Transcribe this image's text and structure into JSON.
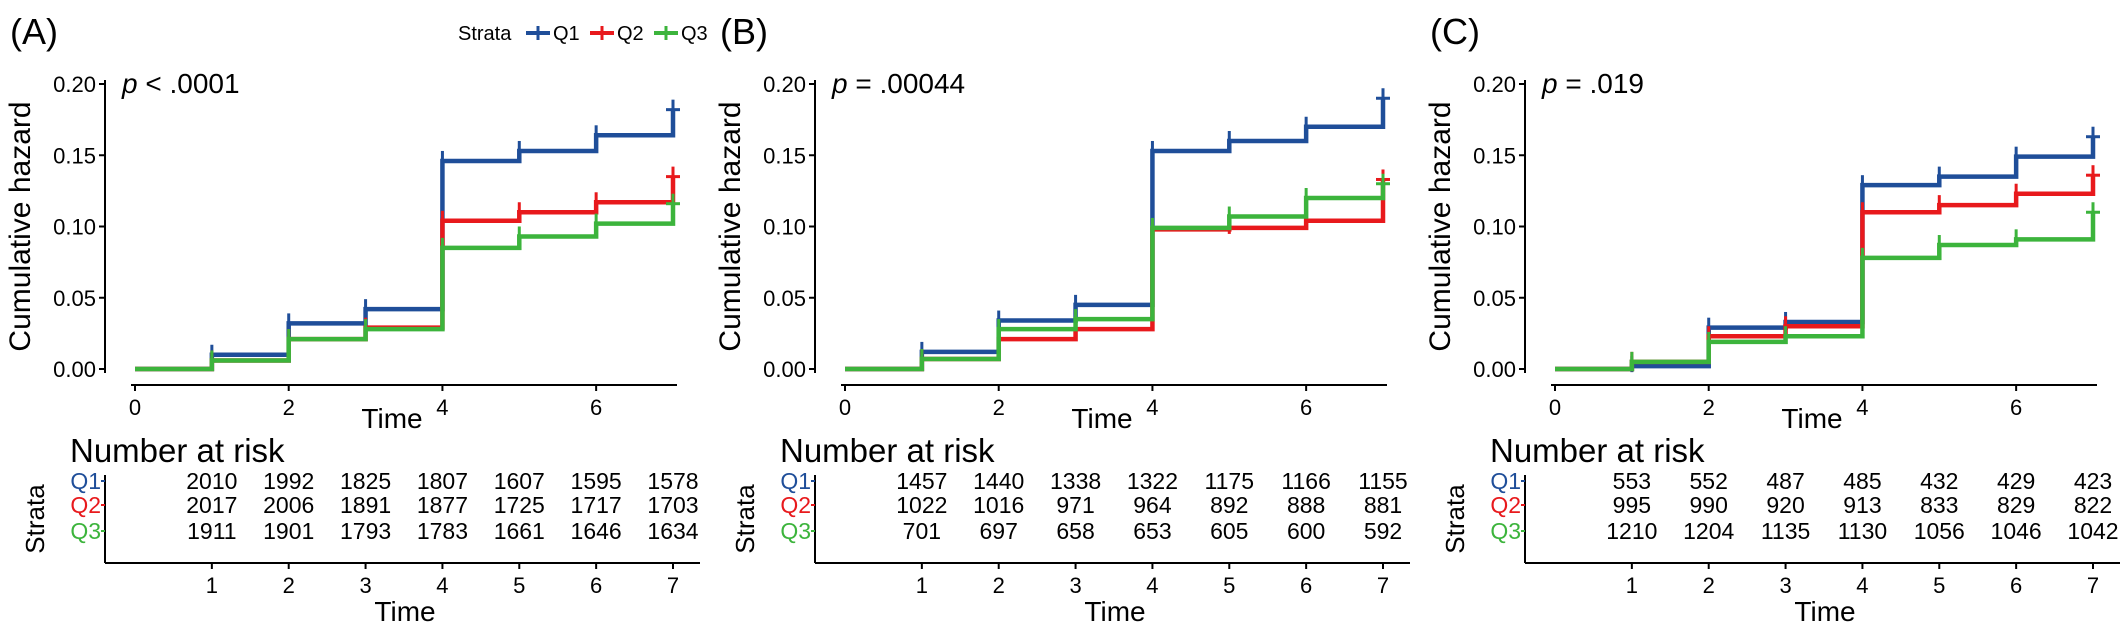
{
  "legend": {
    "title": "Strata",
    "items": [
      {
        "label": "Q1",
        "color": "#1f4e99"
      },
      {
        "label": "Q2",
        "color": "#e8191c"
      },
      {
        "label": "Q3",
        "color": "#3cb43c"
      }
    ]
  },
  "chart_data": [
    {
      "type": "line",
      "panel_label": "(A)",
      "pvalue": {
        "prefix": "p",
        "text": " < .0001"
      },
      "xlabel": "Time",
      "ylabel": "Cumulative hazard",
      "xlim": [
        0,
        7
      ],
      "ylim": [
        0,
        0.2
      ],
      "xticks": [
        0,
        2,
        4,
        6
      ],
      "yticks": [
        "0.00",
        "0.05",
        "0.10",
        "0.15",
        "0.20"
      ],
      "step": true,
      "series": [
        {
          "name": "Q1",
          "x": [
            0,
            1,
            2,
            3,
            4,
            5,
            6,
            7
          ],
          "y": [
            0,
            0.01,
            0.032,
            0.042,
            0.146,
            0.153,
            0.164,
            0.182
          ]
        },
        {
          "name": "Q2",
          "x": [
            0,
            1,
            2,
            3,
            4,
            5,
            6,
            7
          ],
          "y": [
            0,
            0.006,
            0.021,
            0.029,
            0.104,
            0.11,
            0.117,
            0.135
          ]
        },
        {
          "name": "Q3",
          "x": [
            0,
            1,
            2,
            3,
            4,
            5,
            6,
            7
          ],
          "y": [
            0,
            0.006,
            0.021,
            0.028,
            0.085,
            0.093,
            0.102,
            0.116
          ]
        }
      ],
      "risk_table": {
        "title": "Number at risk",
        "ylabel": "Strata",
        "xlabel": "Time",
        "times": [
          "1",
          "2",
          "3",
          "4",
          "5",
          "6",
          "7"
        ],
        "rows": [
          {
            "label": "Q1",
            "values": [
              "2010",
              "1992",
              "1825",
              "1807",
              "1607",
              "1595",
              "1578"
            ]
          },
          {
            "label": "Q2",
            "values": [
              "2017",
              "2006",
              "1891",
              "1877",
              "1725",
              "1717",
              "1703"
            ]
          },
          {
            "label": "Q3",
            "values": [
              "1911",
              "1901",
              "1793",
              "1783",
              "1661",
              "1646",
              "1634"
            ]
          }
        ]
      }
    },
    {
      "type": "line",
      "panel_label": "(B)",
      "pvalue": {
        "prefix": "p",
        "text": " = .00044"
      },
      "xlabel": "Time",
      "ylabel": "Cumulative hazard",
      "xlim": [
        0,
        7
      ],
      "ylim": [
        0,
        0.2
      ],
      "xticks": [
        0,
        2,
        4,
        6
      ],
      "yticks": [
        "0.00",
        "0.05",
        "0.10",
        "0.15",
        "0.20"
      ],
      "step": true,
      "series": [
        {
          "name": "Q1",
          "x": [
            0,
            1,
            2,
            3,
            4,
            5,
            6,
            7
          ],
          "y": [
            0,
            0.012,
            0.034,
            0.045,
            0.153,
            0.16,
            0.17,
            0.19
          ]
        },
        {
          "name": "Q2",
          "x": [
            0,
            1,
            2,
            3,
            4,
            5,
            6,
            7
          ],
          "y": [
            0,
            0.007,
            0.021,
            0.028,
            0.098,
            0.099,
            0.104,
            0.133
          ]
        },
        {
          "name": "Q3",
          "x": [
            0,
            1,
            2,
            3,
            4,
            5,
            6,
            7
          ],
          "y": [
            0,
            0.007,
            0.028,
            0.035,
            0.099,
            0.107,
            0.12,
            0.13
          ]
        }
      ],
      "risk_table": {
        "title": "Number at risk",
        "ylabel": "Strata",
        "xlabel": "Time",
        "times": [
          "1",
          "2",
          "3",
          "4",
          "5",
          "6",
          "7"
        ],
        "rows": [
          {
            "label": "Q1",
            "values": [
              "1457",
              "1440",
              "1338",
              "1322",
              "1175",
              "1166",
              "1155"
            ]
          },
          {
            "label": "Q2",
            "values": [
              "1022",
              "1016",
              "971",
              "964",
              "892",
              "888",
              "881"
            ]
          },
          {
            "label": "Q3",
            "values": [
              "701",
              "697",
              "658",
              "653",
              "605",
              "600",
              "592"
            ]
          }
        ]
      }
    },
    {
      "type": "line",
      "panel_label": "(C)",
      "pvalue": {
        "prefix": "p",
        "text": " = .019"
      },
      "xlabel": "Time",
      "ylabel": "Cumulative hazard",
      "xlim": [
        0,
        7
      ],
      "ylim": [
        0,
        0.2
      ],
      "xticks": [
        0,
        2,
        4,
        6
      ],
      "yticks": [
        "0.00",
        "0.05",
        "0.10",
        "0.15",
        "0.20"
      ],
      "step": true,
      "series": [
        {
          "name": "Q1",
          "x": [
            0,
            1,
            2,
            3,
            4,
            5,
            6,
            7
          ],
          "y": [
            0,
            0.002,
            0.029,
            0.033,
            0.129,
            0.135,
            0.149,
            0.163
          ]
        },
        {
          "name": "Q2",
          "x": [
            0,
            1,
            2,
            3,
            4,
            5,
            6,
            7
          ],
          "y": [
            0,
            0.005,
            0.023,
            0.03,
            0.11,
            0.115,
            0.123,
            0.136
          ]
        },
        {
          "name": "Q3",
          "x": [
            0,
            1,
            2,
            3,
            4,
            5,
            6,
            7
          ],
          "y": [
            0,
            0.005,
            0.019,
            0.023,
            0.078,
            0.087,
            0.091,
            0.11
          ]
        }
      ],
      "risk_table": {
        "title": "Number at risk",
        "ylabel": "Strata",
        "xlabel": "Time",
        "times": [
          "1",
          "2",
          "3",
          "4",
          "5",
          "6",
          "7"
        ],
        "rows": [
          {
            "label": "Q1",
            "values": [
              "553",
              "552",
              "487",
              "485",
              "432",
              "429",
              "423"
            ]
          },
          {
            "label": "Q2",
            "values": [
              "995",
              "990",
              "920",
              "913",
              "833",
              "829",
              "822"
            ]
          },
          {
            "label": "Q3",
            "values": [
              "1210",
              "1204",
              "1135",
              "1130",
              "1056",
              "1046",
              "1042"
            ]
          }
        ]
      }
    }
  ]
}
